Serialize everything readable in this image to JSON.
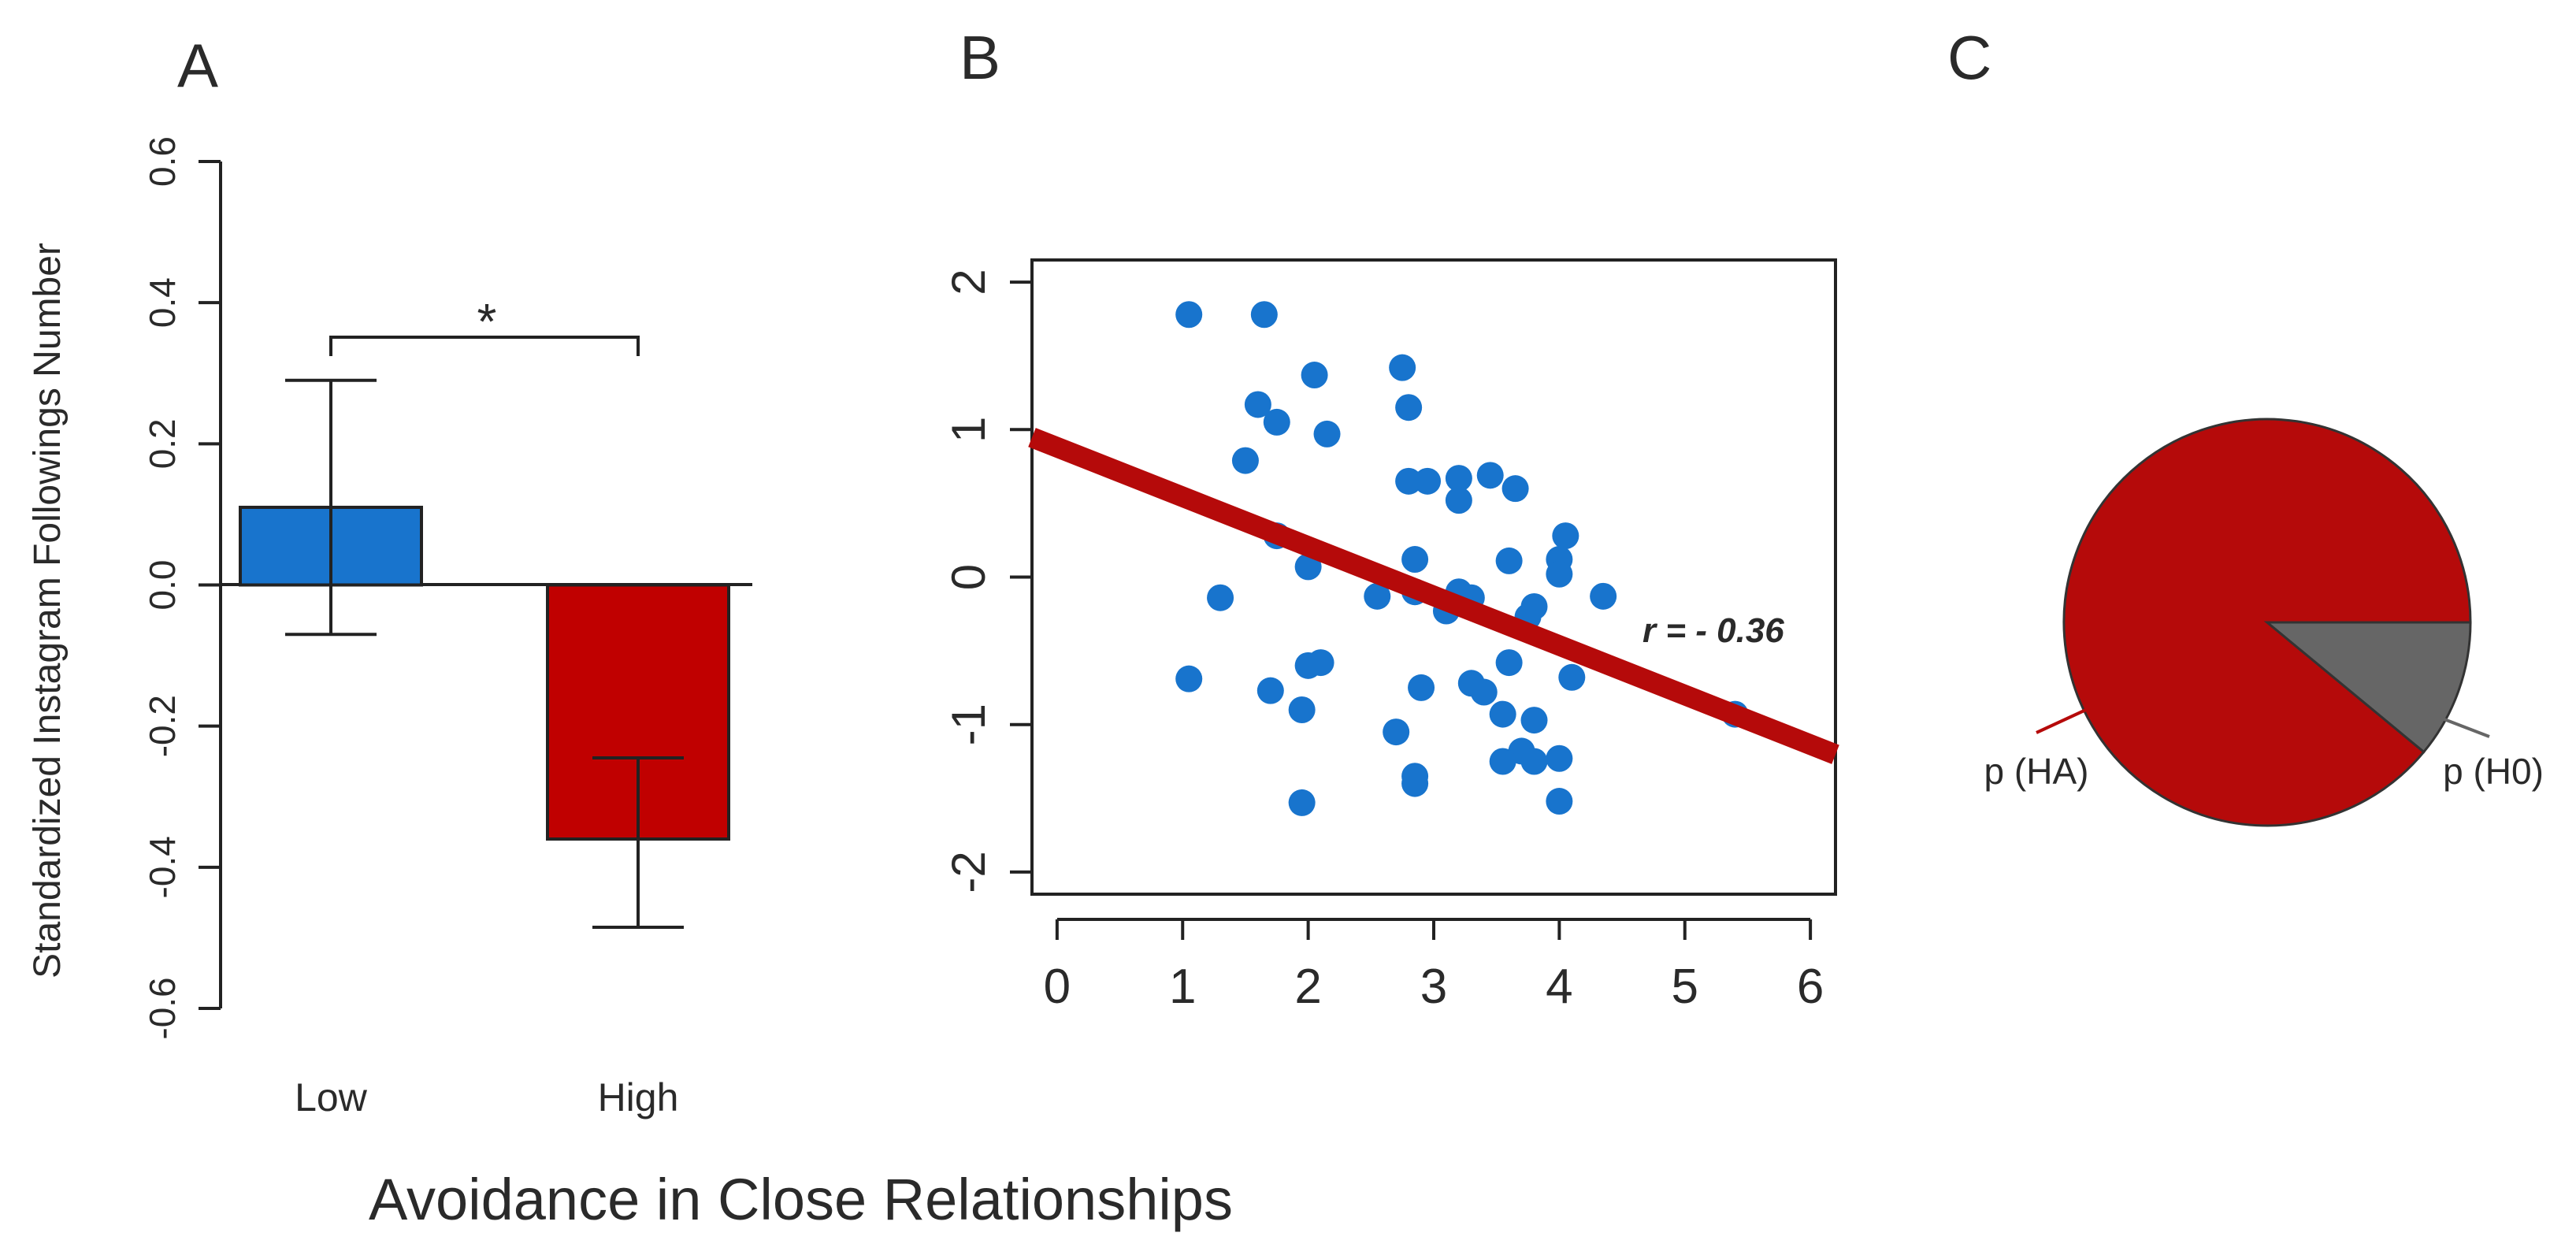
{
  "panels": {
    "a_label": "A",
    "b_label": "B",
    "c_label": "C"
  },
  "shared_xlabel": "Avoidance in Close Relationships",
  "colors": {
    "blue": "#1874CD",
    "red": "#C00000",
    "regression": "#B50A0A",
    "gray": "#666666",
    "axis": "#222222"
  },
  "chart_data": [
    {
      "panel": "A",
      "type": "bar",
      "ylabel": "Standardized Instagram Followings Number",
      "xlabel": "Avoidance in Close Relationships",
      "categories": [
        "Low",
        "High"
      ],
      "values": [
        0.11,
        -0.36
      ],
      "errors": [
        [
          -0.07,
          0.29
        ],
        [
          -0.485,
          -0.245
        ]
      ],
      "bar_colors": [
        "#1874CD",
        "#C00000"
      ],
      "ylim": [
        -0.6,
        0.6
      ],
      "yticks": [
        "0.6",
        "0.4",
        "0.2",
        "0.0",
        "-0.2",
        "-0.4",
        "-0.6"
      ],
      "ytick_values": [
        0.6,
        0.4,
        0.2,
        0.0,
        -0.2,
        -0.4,
        -0.6
      ],
      "annotation": "*"
    },
    {
      "panel": "B",
      "type": "scatter",
      "xlim": [
        -0.2,
        6.2
      ],
      "ylim": [
        -2.15,
        2.15
      ],
      "xticks": [
        "0",
        "1",
        "2",
        "3",
        "4",
        "5",
        "6"
      ],
      "xtick_values": [
        0,
        1,
        2,
        3,
        4,
        5,
        6
      ],
      "yticks": [
        "2",
        "1",
        "0",
        "-1",
        "-2"
      ],
      "ytick_values": [
        2,
        1,
        0,
        -1,
        -2
      ],
      "annotation": "r = - 0.36",
      "regression": {
        "intercept": 0.88,
        "slope": -0.336
      },
      "points": [
        [
          1.05,
          1.78
        ],
        [
          1.65,
          1.78
        ],
        [
          2.75,
          1.42
        ],
        [
          2.05,
          1.37
        ],
        [
          1.6,
          1.17
        ],
        [
          2.8,
          1.15
        ],
        [
          1.75,
          1.05
        ],
        [
          2.15,
          0.97
        ],
        [
          1.5,
          0.79
        ],
        [
          2.8,
          0.65
        ],
        [
          2.95,
          0.65
        ],
        [
          3.2,
          0.67
        ],
        [
          3.45,
          0.69
        ],
        [
          3.65,
          0.6
        ],
        [
          3.2,
          0.52
        ],
        [
          1.75,
          0.28
        ],
        [
          4.05,
          0.28
        ],
        [
          2.85,
          0.12
        ],
        [
          3.6,
          0.11
        ],
        [
          4.0,
          0.12
        ],
        [
          2.0,
          0.07
        ],
        [
          4.0,
          0.02
        ],
        [
          1.3,
          -0.14
        ],
        [
          2.55,
          -0.13
        ],
        [
          2.85,
          -0.1
        ],
        [
          3.2,
          -0.1
        ],
        [
          3.3,
          -0.14
        ],
        [
          3.1,
          -0.23
        ],
        [
          4.35,
          -0.13
        ],
        [
          3.8,
          -0.2
        ],
        [
          3.75,
          -0.27
        ],
        [
          2.0,
          -0.6
        ],
        [
          2.1,
          -0.58
        ],
        [
          3.6,
          -0.58
        ],
        [
          4.1,
          -0.68
        ],
        [
          1.05,
          -0.69
        ],
        [
          3.3,
          -0.72
        ],
        [
          2.9,
          -0.75
        ],
        [
          1.7,
          -0.77
        ],
        [
          3.4,
          -0.78
        ],
        [
          1.95,
          -0.9
        ],
        [
          3.55,
          -0.93
        ],
        [
          3.8,
          -0.97
        ],
        [
          2.7,
          -1.05
        ],
        [
          5.4,
          -0.93
        ],
        [
          3.7,
          -1.18
        ],
        [
          3.55,
          -1.25
        ],
        [
          3.8,
          -1.25
        ],
        [
          4.0,
          -1.23
        ],
        [
          2.85,
          -1.35
        ],
        [
          2.85,
          -1.4
        ],
        [
          1.95,
          -1.53
        ],
        [
          4.0,
          -1.52
        ]
      ]
    },
    {
      "panel": "C",
      "type": "pie",
      "labels": [
        "p (HA)",
        "p (H0)"
      ],
      "values": [
        0.89,
        0.11
      ],
      "slice_colors": [
        "#B50A0A",
        "#666666"
      ]
    }
  ]
}
